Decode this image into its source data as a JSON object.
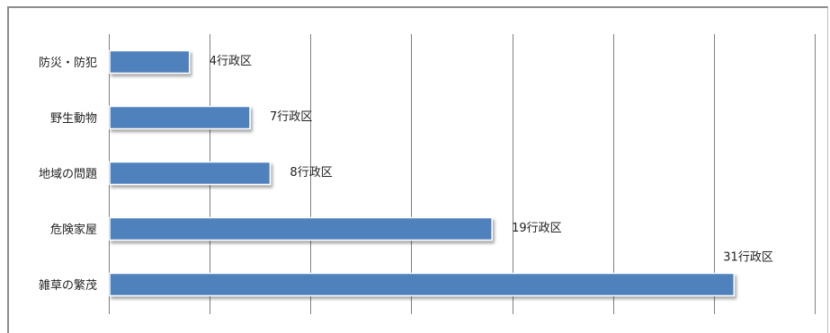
{
  "chart_data": {
    "type": "bar",
    "orientation": "horizontal",
    "categories": [
      "防災・防犯",
      "野生動物",
      "地域の問題",
      "危険家屋",
      "雑草の繁茂"
    ],
    "values": [
      4,
      7,
      8,
      19,
      31
    ],
    "data_labels": [
      "4行政区",
      "7行政区",
      "8行政区",
      "19行政区",
      "31行政区"
    ],
    "title": "",
    "xlabel": "",
    "ylabel": "",
    "xlim": [
      0,
      35
    ],
    "grid": true,
    "legend": "none",
    "bar_color": "#4f81bd",
    "grid_color": "#808080"
  }
}
